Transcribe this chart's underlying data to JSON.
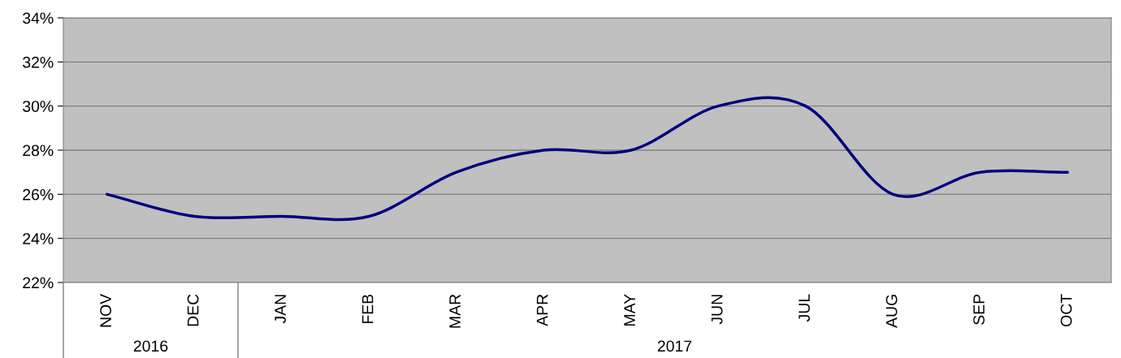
{
  "chart_data": {
    "type": "line",
    "categories": [
      "NOV",
      "DEC",
      "JAN",
      "FEB",
      "MAR",
      "APR",
      "MAY",
      "JUN",
      "JUL",
      "AUG",
      "SEP",
      "OCT"
    ],
    "series": [
      {
        "color": "#000080",
        "values": [
          26,
          25,
          25,
          25,
          27,
          28,
          28,
          30,
          30,
          26,
          27,
          27
        ]
      }
    ],
    "ylim": [
      22,
      34
    ],
    "yticks": [
      {
        "value": 22,
        "label": "22%"
      },
      {
        "value": 24,
        "label": "24%"
      },
      {
        "value": 26,
        "label": "26%"
      },
      {
        "value": 28,
        "label": "28%"
      },
      {
        "value": 30,
        "label": "30%"
      },
      {
        "value": 32,
        "label": "32%"
      },
      {
        "value": 34,
        "label": "34%"
      }
    ],
    "grid": "y",
    "legend": false,
    "marker": "none",
    "line_style": "solid",
    "annotations": [
      "2016",
      "2017"
    ]
  }
}
